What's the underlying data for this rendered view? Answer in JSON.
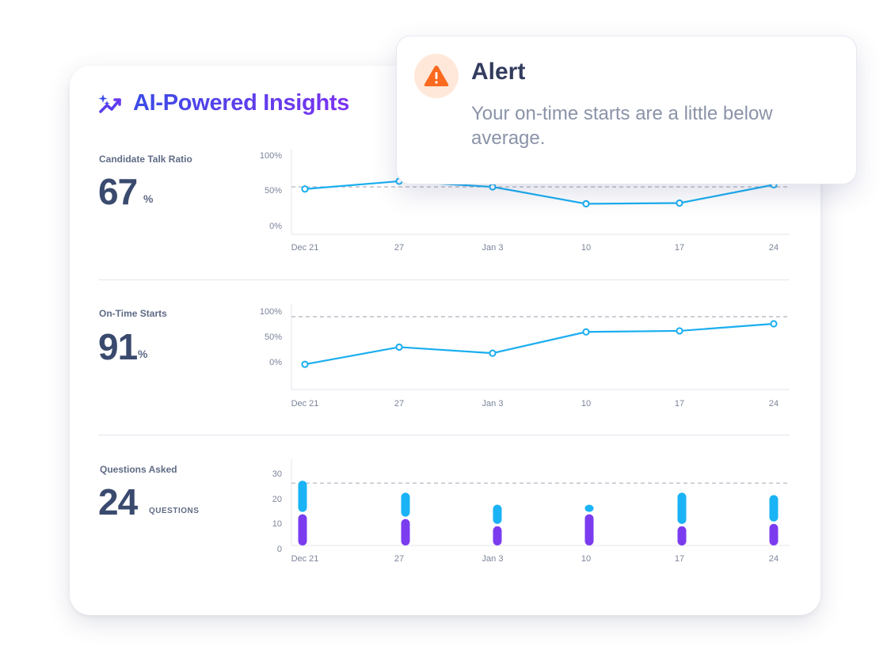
{
  "header": {
    "title": "AI-Powered Insights",
    "icon": "sparkle-trend-icon",
    "gradient": [
      "#3b4ce6",
      "#7b33f0"
    ]
  },
  "alert": {
    "title": "Alert",
    "message": "Your on-time starts are a little below average.",
    "icon": "warning-triangle-icon",
    "icon_color": "#fb6a1f"
  },
  "metrics": [
    {
      "label": "Candidate Talk Ratio",
      "value": "67",
      "unit": "%"
    },
    {
      "label": "On-Time Starts",
      "value": "91",
      "unit": "%"
    },
    {
      "label": "Questions Asked",
      "value": "24",
      "unit": "QUESTIONS"
    }
  ],
  "colors": {
    "line": "#1aaef0",
    "bar_top": "#1ab3f5",
    "bar_bottom": "#7b3cf0",
    "reference_line": "#b8b8c6"
  },
  "chart_data": [
    {
      "type": "line",
      "x": [
        "Dec 21",
        "27",
        "Jan 3",
        "10",
        "17",
        "24"
      ],
      "y_ticks": [
        "100%",
        "50%",
        "0%"
      ],
      "ylim": [
        0,
        100
      ],
      "series": [
        {
          "values": [
            52,
            63,
            55,
            31,
            32,
            58
          ]
        }
      ],
      "reference_line": 55
    },
    {
      "type": "line",
      "x": [
        "Dec 21",
        "27",
        "Jan 3",
        "10",
        "17",
        "24"
      ],
      "y_ticks": [
        "100%",
        "50%",
        "0%"
      ],
      "ylim": [
        0,
        100
      ],
      "series": [
        {
          "values": [
            -5,
            29,
            17,
            59,
            61,
            75
          ]
        }
      ],
      "reference_line": 89
    },
    {
      "type": "bar",
      "stacked": true,
      "categories": [
        "Dec 21",
        "27",
        "Jan 3",
        "10",
        "17",
        "24"
      ],
      "y_ticks": [
        "30",
        "20",
        "10",
        "0"
      ],
      "ylim": [
        0,
        30
      ],
      "series": [
        {
          "values": [
            13,
            11,
            8,
            13,
            8,
            9
          ]
        },
        {
          "values": [
            13,
            10,
            8,
            3,
            13,
            11
          ]
        }
      ],
      "reference_line": 26
    }
  ]
}
